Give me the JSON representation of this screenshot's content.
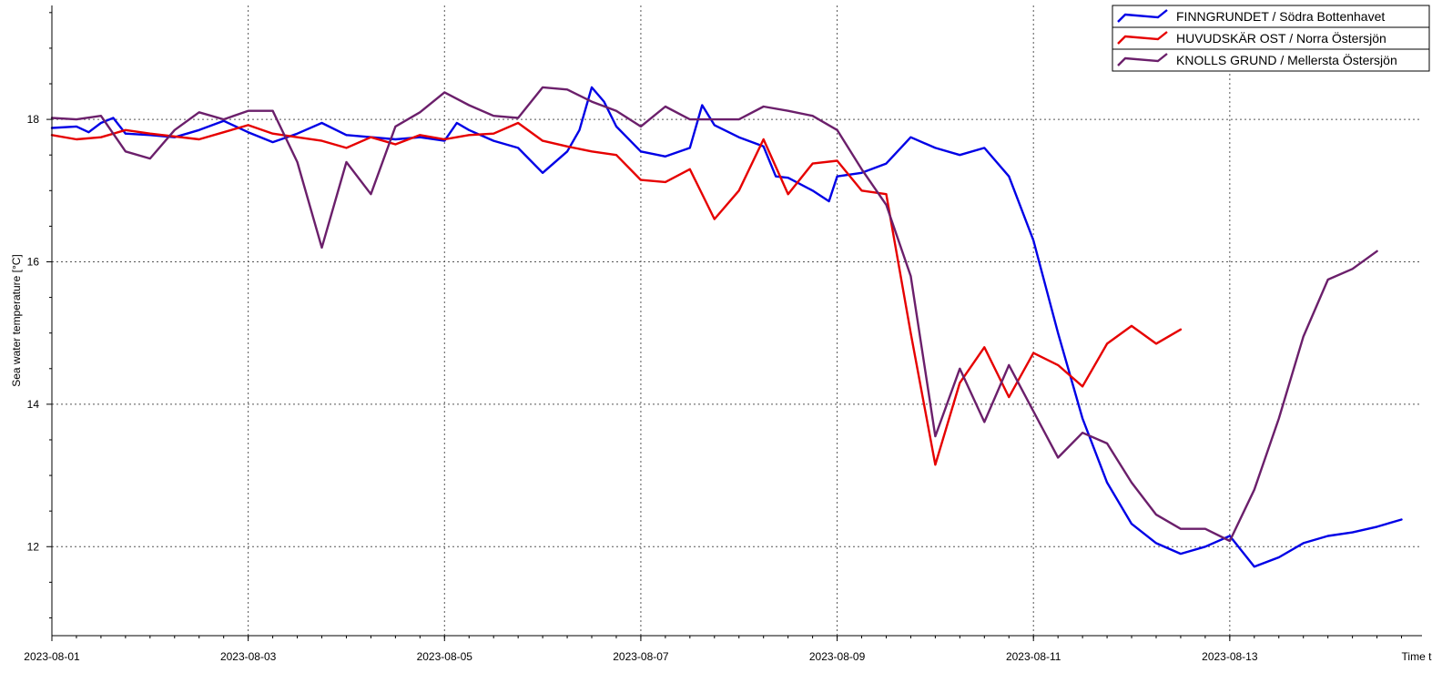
{
  "chart_data": {
    "type": "line",
    "title": "",
    "xlabel": "Time t",
    "ylabel": "Sea water temperature [°C]",
    "xlim": [
      "2023-08-01T00:00",
      "2023-08-14T23:00"
    ],
    "ylim": [
      10.75,
      19.6
    ],
    "x_ticks": [
      "2023-08-01",
      "2023-08-03",
      "2023-08-05",
      "2023-08-07",
      "2023-08-09",
      "2023-08-11",
      "2023-08-13"
    ],
    "y_ticks": [
      12,
      14,
      16,
      18
    ],
    "y_tick_labels": [
      "12",
      "14",
      "16",
      "18"
    ],
    "grid": true,
    "legend_position": "top-right",
    "series": [
      {
        "name": "FINNGRUNDET / Södra Bottenhavet",
        "color": "#0000e6",
        "points": [
          [
            "2023-08-01T00:00",
            17.88
          ],
          [
            "2023-08-01T06:00",
            17.9
          ],
          [
            "2023-08-01T09:00",
            17.82
          ],
          [
            "2023-08-01T12:00",
            17.95
          ],
          [
            "2023-08-01T15:00",
            18.02
          ],
          [
            "2023-08-01T18:00",
            17.8
          ],
          [
            "2023-08-02T00:00",
            17.78
          ],
          [
            "2023-08-02T06:00",
            17.75
          ],
          [
            "2023-08-02T12:00",
            17.85
          ],
          [
            "2023-08-02T18:00",
            17.98
          ],
          [
            "2023-08-03T00:00",
            17.82
          ],
          [
            "2023-08-03T06:00",
            17.68
          ],
          [
            "2023-08-03T12:00",
            17.8
          ],
          [
            "2023-08-03T18:00",
            17.95
          ],
          [
            "2023-08-04T00:00",
            17.78
          ],
          [
            "2023-08-04T12:00",
            17.72
          ],
          [
            "2023-08-04T18:00",
            17.75
          ],
          [
            "2023-08-05T00:00",
            17.7
          ],
          [
            "2023-08-05T03:00",
            17.95
          ],
          [
            "2023-08-05T06:00",
            17.85
          ],
          [
            "2023-08-05T12:00",
            17.7
          ],
          [
            "2023-08-05T18:00",
            17.6
          ],
          [
            "2023-08-06T00:00",
            17.25
          ],
          [
            "2023-08-06T06:00",
            17.55
          ],
          [
            "2023-08-06T09:00",
            17.85
          ],
          [
            "2023-08-06T12:00",
            18.45
          ],
          [
            "2023-08-06T15:00",
            18.25
          ],
          [
            "2023-08-06T18:00",
            17.9
          ],
          [
            "2023-08-07T00:00",
            17.55
          ],
          [
            "2023-08-07T06:00",
            17.48
          ],
          [
            "2023-08-07T12:00",
            17.6
          ],
          [
            "2023-08-07T15:00",
            18.2
          ],
          [
            "2023-08-07T18:00",
            17.92
          ],
          [
            "2023-08-08T00:00",
            17.75
          ],
          [
            "2023-08-08T06:00",
            17.62
          ],
          [
            "2023-08-08T09:00",
            17.2
          ],
          [
            "2023-08-08T12:00",
            17.18
          ],
          [
            "2023-08-08T18:00",
            17.0
          ],
          [
            "2023-08-08T22:00",
            16.85
          ],
          [
            "2023-08-09T00:00",
            17.2
          ],
          [
            "2023-08-09T06:00",
            17.25
          ],
          [
            "2023-08-09T12:00",
            17.38
          ],
          [
            "2023-08-09T18:00",
            17.75
          ],
          [
            "2023-08-10T00:00",
            17.6
          ],
          [
            "2023-08-10T06:00",
            17.5
          ],
          [
            "2023-08-10T12:00",
            17.6
          ],
          [
            "2023-08-10T18:00",
            17.2
          ],
          [
            "2023-08-11T00:00",
            16.3
          ],
          [
            "2023-08-11T06:00",
            15.0
          ],
          [
            "2023-08-11T12:00",
            13.8
          ],
          [
            "2023-08-11T18:00",
            12.9
          ],
          [
            "2023-08-12T00:00",
            12.32
          ],
          [
            "2023-08-12T06:00",
            12.05
          ],
          [
            "2023-08-12T12:00",
            11.9
          ],
          [
            "2023-08-12T18:00",
            12.0
          ],
          [
            "2023-08-13T00:00",
            12.15
          ],
          [
            "2023-08-13T06:00",
            11.72
          ],
          [
            "2023-08-13T12:00",
            11.85
          ],
          [
            "2023-08-13T18:00",
            12.05
          ],
          [
            "2023-08-14T00:00",
            12.15
          ],
          [
            "2023-08-14T06:00",
            12.2
          ],
          [
            "2023-08-14T12:00",
            12.28
          ],
          [
            "2023-08-14T18:00",
            12.38
          ]
        ]
      },
      {
        "name": "HUVUDSKÄR OST / Norra Östersjön",
        "color": "#e60000",
        "points": [
          [
            "2023-08-01T00:00",
            17.78
          ],
          [
            "2023-08-01T06:00",
            17.72
          ],
          [
            "2023-08-01T12:00",
            17.75
          ],
          [
            "2023-08-01T18:00",
            17.85
          ],
          [
            "2023-08-02T00:00",
            17.8
          ],
          [
            "2023-08-02T12:00",
            17.72
          ],
          [
            "2023-08-02T18:00",
            17.82
          ],
          [
            "2023-08-03T00:00",
            17.92
          ],
          [
            "2023-08-03T06:00",
            17.8
          ],
          [
            "2023-08-03T12:00",
            17.75
          ],
          [
            "2023-08-03T18:00",
            17.7
          ],
          [
            "2023-08-04T00:00",
            17.6
          ],
          [
            "2023-08-04T06:00",
            17.75
          ],
          [
            "2023-08-04T12:00",
            17.65
          ],
          [
            "2023-08-04T18:00",
            17.78
          ],
          [
            "2023-08-05T00:00",
            17.72
          ],
          [
            "2023-08-05T06:00",
            17.78
          ],
          [
            "2023-08-05T12:00",
            17.8
          ],
          [
            "2023-08-05T18:00",
            17.95
          ],
          [
            "2023-08-06T00:00",
            17.7
          ],
          [
            "2023-08-06T06:00",
            17.62
          ],
          [
            "2023-08-06T12:00",
            17.55
          ],
          [
            "2023-08-06T18:00",
            17.5
          ],
          [
            "2023-08-07T00:00",
            17.15
          ],
          [
            "2023-08-07T06:00",
            17.12
          ],
          [
            "2023-08-07T12:00",
            17.3
          ],
          [
            "2023-08-07T18:00",
            16.6
          ],
          [
            "2023-08-08T00:00",
            17.0
          ],
          [
            "2023-08-08T06:00",
            17.72
          ],
          [
            "2023-08-08T12:00",
            16.95
          ],
          [
            "2023-08-08T18:00",
            17.38
          ],
          [
            "2023-08-09T00:00",
            17.42
          ],
          [
            "2023-08-09T06:00",
            17.0
          ],
          [
            "2023-08-09T12:00",
            16.95
          ],
          [
            "2023-08-09T18:00",
            15.0
          ],
          [
            "2023-08-10T00:00",
            13.15
          ],
          [
            "2023-08-10T06:00",
            14.3
          ],
          [
            "2023-08-10T12:00",
            14.8
          ],
          [
            "2023-08-10T18:00",
            14.1
          ],
          [
            "2023-08-11T00:00",
            14.72
          ],
          [
            "2023-08-11T06:00",
            14.55
          ],
          [
            "2023-08-11T12:00",
            14.25
          ],
          [
            "2023-08-11T18:00",
            14.85
          ],
          [
            "2023-08-12T00:00",
            15.1
          ],
          [
            "2023-08-12T06:00",
            14.85
          ],
          [
            "2023-08-12T12:00",
            15.05
          ]
        ]
      },
      {
        "name": "KNOLLS GRUND / Mellersta Östersjön",
        "color": "#6b1f6b",
        "points": [
          [
            "2023-08-01T00:00",
            18.02
          ],
          [
            "2023-08-01T06:00",
            18.0
          ],
          [
            "2023-08-01T12:00",
            18.05
          ],
          [
            "2023-08-01T18:00",
            17.55
          ],
          [
            "2023-08-02T00:00",
            17.45
          ],
          [
            "2023-08-02T06:00",
            17.85
          ],
          [
            "2023-08-02T12:00",
            18.1
          ],
          [
            "2023-08-02T18:00",
            18.0
          ],
          [
            "2023-08-03T00:00",
            18.12
          ],
          [
            "2023-08-03T06:00",
            18.12
          ],
          [
            "2023-08-03T12:00",
            17.4
          ],
          [
            "2023-08-03T18:00",
            16.2
          ],
          [
            "2023-08-04T00:00",
            17.4
          ],
          [
            "2023-08-04T06:00",
            16.95
          ],
          [
            "2023-08-04T12:00",
            17.9
          ],
          [
            "2023-08-04T18:00",
            18.1
          ],
          [
            "2023-08-05T00:00",
            18.38
          ],
          [
            "2023-08-05T06:00",
            18.2
          ],
          [
            "2023-08-05T12:00",
            18.05
          ],
          [
            "2023-08-05T18:00",
            18.02
          ],
          [
            "2023-08-06T00:00",
            18.45
          ],
          [
            "2023-08-06T06:00",
            18.42
          ],
          [
            "2023-08-06T12:00",
            18.25
          ],
          [
            "2023-08-06T18:00",
            18.12
          ],
          [
            "2023-08-07T00:00",
            17.9
          ],
          [
            "2023-08-07T06:00",
            18.18
          ],
          [
            "2023-08-07T12:00",
            18.0
          ],
          [
            "2023-08-07T18:00",
            18.0
          ],
          [
            "2023-08-08T00:00",
            18.0
          ],
          [
            "2023-08-08T06:00",
            18.18
          ],
          [
            "2023-08-08T12:00",
            18.12
          ],
          [
            "2023-08-08T18:00",
            18.05
          ],
          [
            "2023-08-09T00:00",
            17.85
          ],
          [
            "2023-08-09T06:00",
            17.3
          ],
          [
            "2023-08-09T12:00",
            16.8
          ],
          [
            "2023-08-09T18:00",
            15.8
          ],
          [
            "2023-08-10T00:00",
            13.55
          ],
          [
            "2023-08-10T06:00",
            14.5
          ],
          [
            "2023-08-10T12:00",
            13.75
          ],
          [
            "2023-08-10T18:00",
            14.55
          ],
          [
            "2023-08-11T00:00",
            13.9
          ],
          [
            "2023-08-11T06:00",
            13.25
          ],
          [
            "2023-08-11T12:00",
            13.6
          ],
          [
            "2023-08-11T18:00",
            13.45
          ],
          [
            "2023-08-12T00:00",
            12.9
          ],
          [
            "2023-08-12T06:00",
            12.45
          ],
          [
            "2023-08-12T12:00",
            12.25
          ],
          [
            "2023-08-12T18:00",
            12.25
          ],
          [
            "2023-08-13T00:00",
            12.08
          ],
          [
            "2023-08-13T06:00",
            12.8
          ],
          [
            "2023-08-13T12:00",
            13.8
          ],
          [
            "2023-08-13T18:00",
            14.95
          ],
          [
            "2023-08-14T00:00",
            15.75
          ],
          [
            "2023-08-14T06:00",
            15.9
          ],
          [
            "2023-08-14T12:00",
            16.15
          ]
        ]
      }
    ]
  }
}
